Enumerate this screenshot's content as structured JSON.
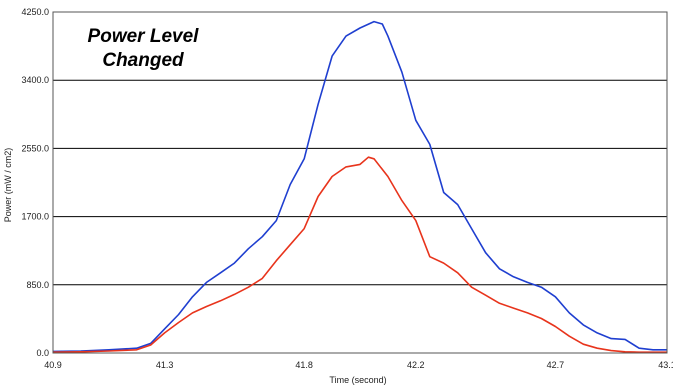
{
  "chart_data": {
    "type": "line",
    "title": "",
    "annotation_lines": [
      "Power Level",
      "Changed"
    ],
    "xlabel": "Time (second)",
    "ylabel": "Power (mW / cm2)",
    "xlim": [
      40.9,
      43.1
    ],
    "ylim": [
      0,
      4250
    ],
    "x_ticks": [
      "40.9",
      "41.3",
      "41.8",
      "42.2",
      "42.7",
      "43.1"
    ],
    "y_ticks": [
      "0.0",
      "850.0",
      "1700.0",
      "2550.0",
      "3400.0",
      "4250.0"
    ],
    "x_tick_values": [
      40.9,
      41.3,
      41.8,
      42.2,
      42.7,
      43.1
    ],
    "y_tick_values": [
      0,
      850,
      1700,
      2550,
      3400,
      4250
    ],
    "horizontal_grid": true,
    "vertical_grid": false,
    "legend": "none",
    "series": [
      {
        "color": "#1f3fd0",
        "x": [
          40.9,
          41.0,
          41.1,
          41.2,
          41.25,
          41.3,
          41.35,
          41.4,
          41.45,
          41.5,
          41.55,
          41.6,
          41.65,
          41.7,
          41.75,
          41.8,
          41.85,
          41.9,
          41.95,
          42.0,
          42.05,
          42.08,
          42.1,
          42.15,
          42.2,
          42.25,
          42.3,
          42.35,
          42.4,
          42.45,
          42.5,
          42.55,
          42.6,
          42.65,
          42.7,
          42.75,
          42.8,
          42.85,
          42.9,
          42.95,
          43.0,
          43.05,
          43.1
        ],
        "y": [
          20,
          25,
          40,
          60,
          120,
          300,
          480,
          700,
          880,
          1000,
          1120,
          1300,
          1450,
          1650,
          2100,
          2420,
          3100,
          3700,
          3950,
          4050,
          4130,
          4100,
          3950,
          3500,
          2900,
          2600,
          2000,
          1850,
          1550,
          1250,
          1050,
          950,
          880,
          820,
          700,
          500,
          350,
          250,
          180,
          170,
          60,
          40,
          40
        ]
      },
      {
        "color": "#e8341c",
        "x": [
          40.9,
          41.0,
          41.1,
          41.2,
          41.25,
          41.3,
          41.35,
          41.4,
          41.45,
          41.5,
          41.55,
          41.6,
          41.65,
          41.7,
          41.75,
          41.8,
          41.85,
          41.9,
          41.95,
          42.0,
          42.03,
          42.05,
          42.1,
          42.15,
          42.2,
          42.25,
          42.3,
          42.35,
          42.4,
          42.45,
          42.5,
          42.55,
          42.6,
          42.65,
          42.7,
          42.75,
          42.8,
          42.85,
          42.9,
          42.95,
          43.0,
          43.05,
          43.1
        ],
        "y": [
          10,
          15,
          25,
          40,
          100,
          250,
          380,
          500,
          580,
          650,
          730,
          820,
          930,
          1150,
          1350,
          1550,
          1950,
          2200,
          2320,
          2350,
          2440,
          2420,
          2200,
          1900,
          1650,
          1200,
          1120,
          1000,
          820,
          720,
          620,
          560,
          500,
          430,
          330,
          210,
          110,
          60,
          30,
          15,
          10,
          10,
          10
        ]
      }
    ]
  }
}
